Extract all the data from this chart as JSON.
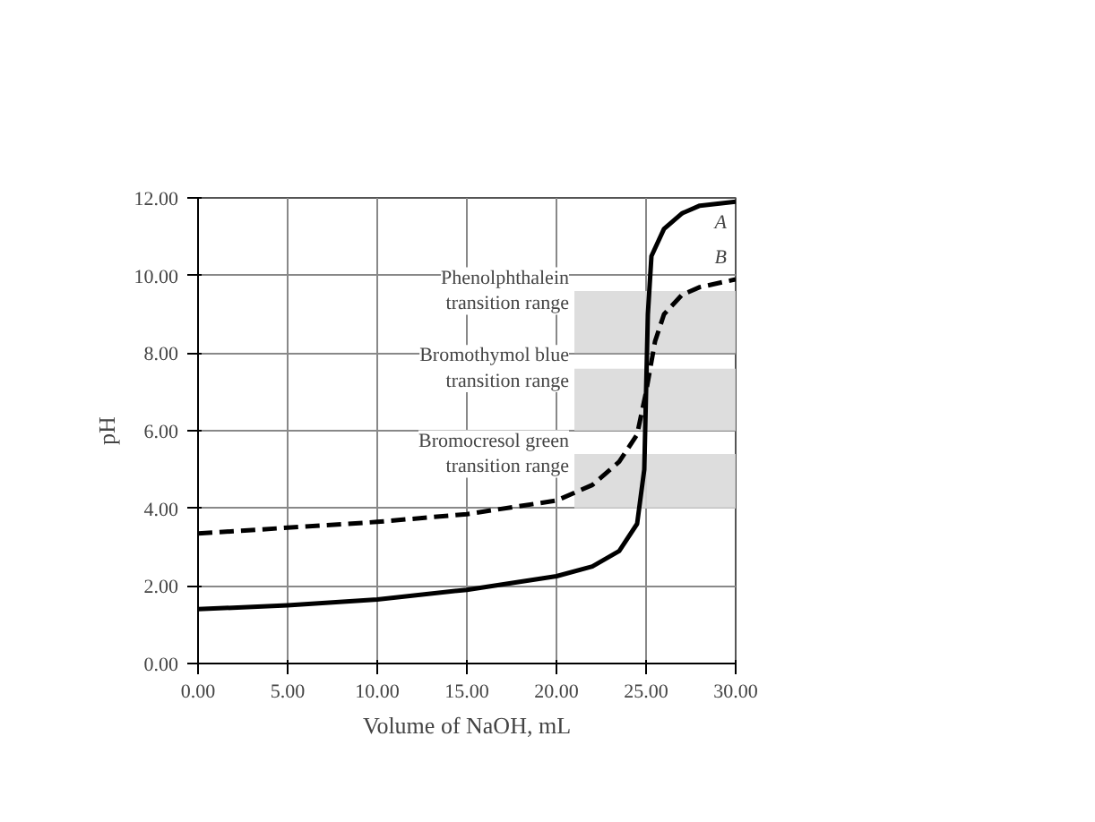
{
  "chart_data": {
    "type": "line",
    "xlabel": "Volume of NaOH, mL",
    "ylabel": "pH",
    "xlim": [
      0,
      30
    ],
    "ylim": [
      0,
      12
    ],
    "xticks": [
      {
        "value": 0,
        "label": "0.00"
      },
      {
        "value": 5,
        "label": "5.00"
      },
      {
        "value": 10,
        "label": "10.00"
      },
      {
        "value": 15,
        "label": "15.00"
      },
      {
        "value": 20,
        "label": "20.00"
      },
      {
        "value": 25,
        "label": "25.00"
      },
      {
        "value": 30,
        "label": "30.00"
      }
    ],
    "yticks": [
      {
        "value": 0,
        "label": "0.00"
      },
      {
        "value": 2,
        "label": "2.00"
      },
      {
        "value": 4,
        "label": "4.00"
      },
      {
        "value": 6,
        "label": "6.00"
      },
      {
        "value": 8,
        "label": "8.00"
      },
      {
        "value": 10,
        "label": "10.00"
      },
      {
        "value": 12,
        "label": "12.00"
      }
    ],
    "grid": true,
    "legend": false,
    "marker": "none",
    "series": [
      {
        "name": "A",
        "color": "#000000",
        "line_style": "solid",
        "x": [
          0,
          5,
          10,
          15,
          20,
          22,
          23.5,
          24.5,
          24.9,
          25,
          25.1,
          25.3,
          26,
          27,
          28,
          30
        ],
        "values": [
          1.4,
          1.5,
          1.65,
          1.9,
          2.25,
          2.5,
          2.9,
          3.6,
          5,
          7,
          9,
          10.5,
          11.2,
          11.6,
          11.8,
          11.9
        ]
      },
      {
        "name": "B",
        "color": "#000000",
        "line_style": "dashed",
        "x": [
          0,
          5,
          10,
          15,
          20,
          22,
          23.5,
          24.5,
          25,
          25.5,
          26,
          27,
          28,
          30
        ],
        "values": [
          3.35,
          3.5,
          3.65,
          3.85,
          4.2,
          4.6,
          5.2,
          5.9,
          7,
          8.3,
          9.0,
          9.5,
          9.7,
          9.9
        ]
      }
    ],
    "bands": [
      {
        "axis": "y",
        "from": 8.0,
        "to": 9.6,
        "label": "Phenolphthalein\ntransition range",
        "color": "#d9d9d9"
      },
      {
        "axis": "y",
        "from": 6.0,
        "to": 7.6,
        "label": "Bromothymol blue\ntransition range",
        "color": "#d9d9d9"
      },
      {
        "axis": "y",
        "from": 4.0,
        "to": 5.4,
        "label": "Bromocresol green\ntransition range",
        "color": "#d9d9d9"
      }
    ]
  }
}
